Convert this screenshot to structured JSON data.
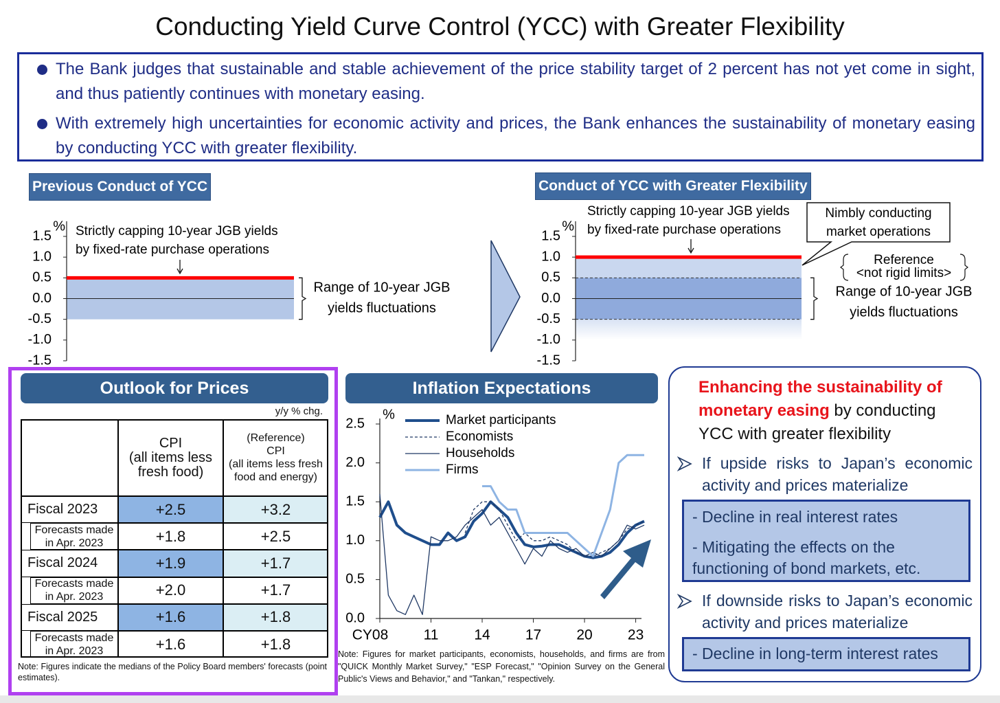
{
  "title": "Conducting Yield Curve Control (YCC) with Greater Flexibility",
  "summary": [
    "The Bank judges that sustainable and stable achievement of the price stability target of 2 percent has not yet come in sight, and thus patiently continues with monetary easing.",
    "With extremely high uncertainties for economic activity and prices, the Bank enhances the sustainability of monetary easing by conducting YCC with greater flexibility."
  ],
  "chart_data": [
    {
      "type": "range",
      "title": "Previous Conduct of YCC",
      "unit": "%",
      "ylim": [
        -1.5,
        1.5
      ],
      "yticks": [
        1.5,
        {
          "value": 1,
          "label": "1.0"
        },
        0.5,
        {
          "value": 0,
          "label": "0.0"
        },
        -0.5,
        {
          "value": -1,
          "label": "-1.0"
        },
        -1.5
      ],
      "cap": 0.5,
      "cap_color": "#ff0000",
      "band": [
        -0.5,
        0.5
      ],
      "band_color": "#b4c7e7",
      "band_style": "solid",
      "cap_label": [
        "Strictly capping 10-year JGB yields",
        "by fixed-rate purchase operations"
      ],
      "range_label": [
        "Range of 10-year JGB",
        "yields fluctuations"
      ]
    },
    {
      "type": "range",
      "title": "Conduct of YCC with Greater Flexibility",
      "unit": "%",
      "ylim": [
        -1.5,
        1.5
      ],
      "yticks": [
        1.5,
        {
          "value": 1,
          "label": "1.0"
        },
        0.5,
        {
          "value": 0,
          "label": "0.0"
        },
        -0.5,
        {
          "value": -1,
          "label": "-1.0"
        },
        -1.5
      ],
      "cap": 1.0,
      "cap_color": "#ff0000",
      "band": [
        -1,
        1
      ],
      "band_color": "#c9d7ef",
      "band_style": "fade",
      "reference": [
        -0.5,
        0.5
      ],
      "reference_color": "#8faadc",
      "cap_label": [
        "Strictly capping 10-year JGB yields",
        "by fixed-rate purchase operations"
      ],
      "callout": [
        "Nimbly conducting",
        "market operations"
      ],
      "reference_label": [
        "Reference",
        "<not rigid limits>"
      ],
      "range_label": [
        "Range of 10-year JGB",
        "yields fluctuations"
      ]
    },
    {
      "type": "line",
      "title": "Inflation Expectations",
      "unit": "%",
      "x": [
        2008,
        2008.5,
        2009,
        2009.5,
        2010,
        2010.5,
        2011,
        2011.5,
        2012,
        2012.5,
        2013,
        2013.5,
        2014,
        2014.5,
        2015,
        2015.5,
        2016,
        2016.5,
        2017,
        2017.5,
        2018,
        2018.5,
        2019,
        2019.5,
        2020,
        2020.5,
        2021,
        2021.5,
        2022,
        2022.5,
        2023,
        2023.5
      ],
      "xlim": [
        2008,
        2023.5
      ],
      "xticks": [
        {
          "value": 2008,
          "label": "CY08"
        },
        {
          "value": 2011,
          "label": "11"
        },
        {
          "value": 2014,
          "label": "14"
        },
        {
          "value": 2017,
          "label": "17"
        },
        {
          "value": 2020,
          "label": "20"
        },
        {
          "value": 2023,
          "label": "23"
        }
      ],
      "ylim": [
        0,
        2.5
      ],
      "yticks": [
        {
          "value": 0,
          "label": "0.0"
        },
        0.5,
        {
          "value": 1,
          "label": "1.0"
        },
        1.5,
        {
          "value": 2,
          "label": "2.0"
        },
        2.5
      ],
      "series": [
        {
          "name": "Market participants",
          "color": "#1f4e8c",
          "width": 4,
          "dash": "none",
          "values": [
            1.3,
            1.5,
            1.2,
            1.1,
            1.05,
            1.0,
            0.95,
            0.95,
            1.1,
            1.0,
            1.05,
            1.25,
            1.35,
            1.5,
            1.4,
            1.3,
            1.1,
            0.95,
            0.92,
            0.93,
            0.95,
            0.95,
            0.9,
            0.85,
            0.8,
            0.78,
            0.8,
            0.85,
            0.95,
            1.1,
            1.2,
            1.25
          ]
        },
        {
          "name": "Economists",
          "color": "#1f3864",
          "width": 1.3,
          "dash": "4,3",
          "values": [
            null,
            null,
            null,
            null,
            null,
            null,
            null,
            null,
            null,
            null,
            1.1,
            1.4,
            1.5,
            1.5,
            1.4,
            1.2,
            1.0,
            1.1,
            1.0,
            1.0,
            1.05,
            1.0,
            0.95,
            0.85,
            0.8,
            0.8,
            0.85,
            0.9,
            1.0,
            1.15,
            1.2,
            1.25
          ]
        },
        {
          "name": "Households",
          "color": "#1f3864",
          "width": 1.3,
          "dash": "none",
          "values": [
            1.6,
            0.3,
            0.1,
            0.05,
            0.3,
            0.05,
            1.05,
            1.0,
            1.0,
            1.05,
            1.2,
            1.3,
            1.4,
            1.2,
            1.3,
            1.1,
            0.9,
            0.7,
            0.9,
            0.8,
            1.0,
            0.9,
            0.85,
            0.9,
            0.8,
            0.85,
            0.8,
            0.9,
            1.0,
            1.2,
            1.15,
            1.2
          ]
        },
        {
          "name": "Firms",
          "color": "#8eb4e3",
          "width": 3,
          "dash": "none",
          "values": [
            null,
            null,
            null,
            null,
            null,
            null,
            null,
            null,
            null,
            null,
            null,
            null,
            1.7,
            1.7,
            1.5,
            1.4,
            1.4,
            1.1,
            1.1,
            1.1,
            1.1,
            1.1,
            1.1,
            1.0,
            0.9,
            0.8,
            1.1,
            1.4,
            2.0,
            2.1,
            2.1,
            2.1
          ]
        }
      ],
      "note": "Note: Figures for market participants, economists, households, and firms are from \"QUICK Monthly Market Survey,\" \"ESP Forecast,\" \"Opinion Survey on the General Public's Views and Behavior,\" and \"Tankan,\" respectively."
    }
  ],
  "table": {
    "title": "Outlook for Prices",
    "unit": "y/y % chg.",
    "columns": [
      [
        "CPI",
        "(all items less",
        "fresh food)"
      ],
      [
        "(Reference)",
        "CPI",
        "(all items less fresh",
        "food and energy)"
      ]
    ],
    "rows": [
      {
        "label": "Fiscal 2023",
        "values": [
          "+2.5",
          "+3.2"
        ],
        "forecast": {
          "label": [
            "Forecasts made",
            "in Apr. 2023"
          ],
          "values": [
            "+1.8",
            "+2.5"
          ]
        }
      },
      {
        "label": "Fiscal 2024",
        "values": [
          "+1.9",
          "+1.7"
        ],
        "forecast": {
          "label": [
            "Forecasts made",
            "in Apr. 2023"
          ],
          "values": [
            "+2.0",
            "+1.7"
          ]
        }
      },
      {
        "label": "Fiscal 2025",
        "values": [
          "+1.6",
          "+1.8"
        ],
        "forecast": {
          "label": [
            "Forecasts made",
            "in Apr. 2023"
          ],
          "values": [
            "+1.6",
            "+1.8"
          ]
        }
      }
    ],
    "note": "Note: Figures indicate the medians of the Policy Board members' forecasts (point estimates)."
  },
  "policy_box": {
    "heading_emphasis": "Enhancing the sustainability of monetary easing",
    "heading_rest": "by conducting YCC with greater flexibility",
    "cases": [
      {
        "condition": "If upside risks to Japan’s economic activity and prices materialize",
        "effects": [
          "- Decline in real interest rates",
          "- Mitigating the effects on the functioning of bond markets, etc."
        ]
      },
      {
        "condition": "If downside risks to Japan’s economic activity and prices materialize",
        "effects": [
          "- Decline in long-term interest rates"
        ]
      }
    ]
  }
}
